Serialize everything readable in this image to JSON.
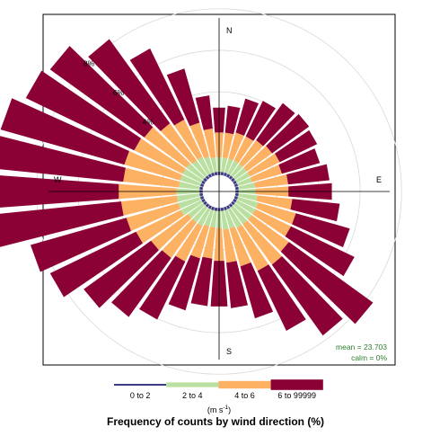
{
  "chart_data": {
    "type": "polar-bar",
    "title": "Frequency of counts by wind direction (%)",
    "radial_labels": [
      "4%",
      "6%",
      "8%"
    ],
    "radial_max": 8,
    "inner_offset": 0.8,
    "compass": {
      "n": "N",
      "e": "E",
      "s": "S",
      "w": "W"
    },
    "stats": {
      "mean": "mean = 23.703",
      "calm": "calm = 0%"
    },
    "legend": {
      "items": [
        {
          "label": "0 to 2",
          "color": "#3F3A86"
        },
        {
          "label": "2 to 4",
          "color": "#B9E0A0"
        },
        {
          "label": "4 to 6",
          "color": "#FDB163"
        },
        {
          "label": "6 to 99999",
          "color": "#8B0035"
        }
      ],
      "unit_base": "(m s",
      "unit_exp": "-1",
      "unit_close": ")"
    },
    "directions_deg": [
      0,
      10,
      20,
      30,
      40,
      50,
      60,
      70,
      80,
      90,
      100,
      110,
      120,
      130,
      140,
      150,
      160,
      170,
      180,
      190,
      200,
      210,
      220,
      230,
      240,
      250,
      260,
      270,
      280,
      290,
      300,
      310,
      320,
      330,
      340,
      350
    ],
    "series": [
      {
        "name": "0 to 2",
        "values": [
          0.15,
          0.15,
          0.15,
          0.15,
          0.15,
          0.15,
          0.15,
          0.15,
          0.15,
          0.15,
          0.15,
          0.15,
          0.15,
          0.15,
          0.15,
          0.15,
          0.15,
          0.15,
          0.15,
          0.15,
          0.15,
          0.15,
          0.15,
          0.15,
          0.15,
          0.15,
          0.15,
          0.15,
          0.15,
          0.15,
          0.15,
          0.15,
          0.15,
          0.15,
          0.15,
          0.15
        ]
      },
      {
        "name": "2 to 4",
        "values": [
          0.7,
          0.7,
          0.7,
          0.7,
          0.7,
          0.7,
          0.7,
          0.7,
          0.8,
          0.8,
          0.9,
          1.0,
          1.0,
          1.0,
          1.0,
          1.0,
          0.9,
          0.9,
          0.8,
          0.8,
          0.8,
          0.9,
          0.9,
          0.9,
          1.1,
          1.1,
          1.1,
          1.1,
          1.0,
          1.0,
          1.0,
          1.0,
          0.9,
          0.9,
          0.8,
          0.7
        ]
      },
      {
        "name": "4 to 6",
        "values": [
          1.2,
          1.2,
          1.3,
          1.3,
          1.4,
          1.5,
          1.6,
          1.5,
          1.6,
          1.6,
          1.7,
          1.9,
          1.9,
          2.2,
          2.4,
          2.3,
          1.9,
          1.6,
          1.6,
          1.5,
          1.6,
          1.9,
          2.1,
          2.2,
          2.4,
          2.6,
          2.7,
          2.8,
          2.7,
          2.8,
          2.6,
          2.5,
          2.2,
          2.0,
          1.7,
          1.4
        ]
      },
      {
        "name": "6 to 99999",
        "values": [
          1.2,
          1.3,
          1.7,
          1.9,
          2.2,
          2.2,
          2.0,
          1.9,
          2.0,
          2.1,
          2.3,
          2.7,
          3.4,
          5.0,
          4.2,
          3.2,
          2.6,
          2.2,
          2.2,
          2.3,
          2.6,
          3.1,
          3.5,
          4.0,
          4.6,
          4.8,
          6.3,
          7.2,
          6.5,
          6.2,
          5.8,
          5.6,
          5.0,
          3.8,
          2.7,
          1.6
        ]
      }
    ]
  }
}
